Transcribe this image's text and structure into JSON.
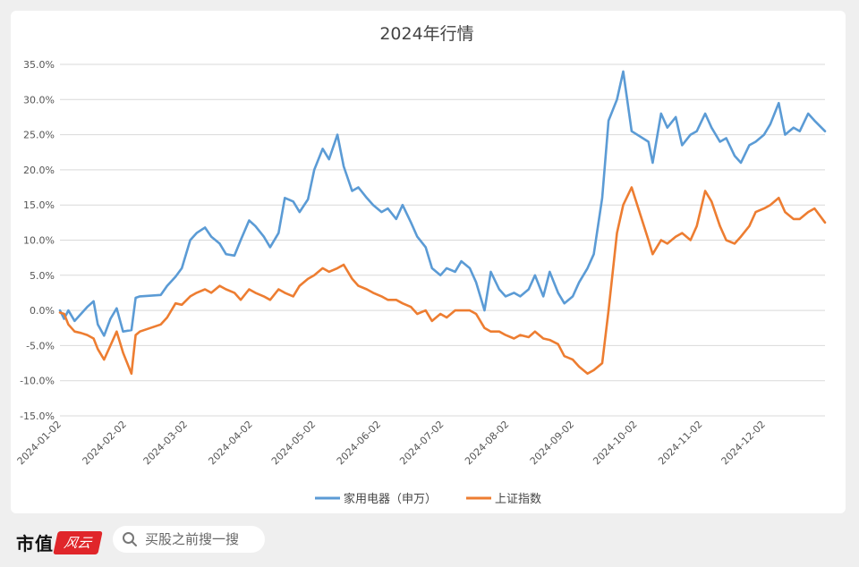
{
  "chart_data": {
    "type": "line",
    "title": "2024年行情",
    "xlabel": "",
    "ylabel": "",
    "ylim": [
      -0.15,
      0.35
    ],
    "yticks": [
      0.35,
      0.3,
      0.25,
      0.2,
      0.15,
      0.1,
      0.05,
      0.0,
      -0.05,
      -0.1,
      -0.15
    ],
    "ytick_labels": [
      "35.0%",
      "30.0%",
      "25.0%",
      "20.0%",
      "15.0%",
      "10.0%",
      "5.0%",
      "0.0%",
      "-5.0%",
      "-10.0%",
      "-15.0%"
    ],
    "xlim": [
      "2024-01-02",
      "2024-12-31"
    ],
    "xticks": [
      "2024-01-02",
      "2024-02-02",
      "2024-03-02",
      "2024-04-02",
      "2024-05-02",
      "2024-06-02",
      "2024-07-02",
      "2024-08-02",
      "2024-09-02",
      "2024-10-02",
      "2024-11-02",
      "2024-12-02"
    ],
    "grid": true,
    "legend_position": "bottom",
    "series": [
      {
        "name": "家用电器（申万）",
        "color": "#5b9bd5",
        "x": [
          "2024-01-02",
          "2024-01-04",
          "2024-01-06",
          "2024-01-09",
          "2024-01-12",
          "2024-01-15",
          "2024-01-18",
          "2024-01-20",
          "2024-01-23",
          "2024-01-26",
          "2024-01-29",
          "2024-02-01",
          "2024-02-05",
          "2024-02-07",
          "2024-02-09",
          "2024-02-19",
          "2024-02-22",
          "2024-02-26",
          "2024-02-29",
          "2024-03-04",
          "2024-03-07",
          "2024-03-11",
          "2024-03-14",
          "2024-03-18",
          "2024-03-21",
          "2024-03-25",
          "2024-03-28",
          "2024-04-01",
          "2024-04-04",
          "2024-04-08",
          "2024-04-11",
          "2024-04-15",
          "2024-04-18",
          "2024-04-22",
          "2024-04-25",
          "2024-04-29",
          "2024-05-02",
          "2024-05-06",
          "2024-05-09",
          "2024-05-13",
          "2024-05-16",
          "2024-05-20",
          "2024-05-23",
          "2024-05-27",
          "2024-05-30",
          "2024-06-03",
          "2024-06-06",
          "2024-06-10",
          "2024-06-13",
          "2024-06-17",
          "2024-06-20",
          "2024-06-24",
          "2024-06-27",
          "2024-07-01",
          "2024-07-04",
          "2024-07-08",
          "2024-07-11",
          "2024-07-15",
          "2024-07-18",
          "2024-07-22",
          "2024-07-25",
          "2024-07-29",
          "2024-08-01",
          "2024-08-05",
          "2024-08-08",
          "2024-08-12",
          "2024-08-15",
          "2024-08-19",
          "2024-08-22",
          "2024-08-26",
          "2024-08-29",
          "2024-09-02",
          "2024-09-05",
          "2024-09-09",
          "2024-09-12",
          "2024-09-16",
          "2024-09-19",
          "2024-09-23",
          "2024-09-26",
          "2024-09-30",
          "2024-10-08",
          "2024-10-10",
          "2024-10-14",
          "2024-10-17",
          "2024-10-21",
          "2024-10-24",
          "2024-10-28",
          "2024-10-31",
          "2024-11-04",
          "2024-11-07",
          "2024-11-11",
          "2024-11-14",
          "2024-11-18",
          "2024-11-21",
          "2024-11-25",
          "2024-11-28",
          "2024-12-02",
          "2024-12-05",
          "2024-12-09",
          "2024-12-12",
          "2024-12-16",
          "2024-12-19",
          "2024-12-23",
          "2024-12-26",
          "2024-12-31"
        ],
        "values": [
          0.0,
          -0.012,
          0.0,
          -0.015,
          -0.005,
          0.005,
          0.013,
          -0.02,
          -0.036,
          -0.012,
          0.003,
          -0.03,
          -0.028,
          0.018,
          0.02,
          0.022,
          0.035,
          0.048,
          0.06,
          0.1,
          0.11,
          0.118,
          0.105,
          0.095,
          0.08,
          0.078,
          0.1,
          0.128,
          0.12,
          0.105,
          0.09,
          0.11,
          0.16,
          0.155,
          0.14,
          0.158,
          0.2,
          0.23,
          0.215,
          0.25,
          0.205,
          0.17,
          0.175,
          0.16,
          0.15,
          0.14,
          0.145,
          0.13,
          0.15,
          0.125,
          0.105,
          0.09,
          0.06,
          0.05,
          0.06,
          0.055,
          0.07,
          0.06,
          0.04,
          0.0,
          0.055,
          0.03,
          0.02,
          0.025,
          0.02,
          0.03,
          0.05,
          0.02,
          0.055,
          0.025,
          0.01,
          0.02,
          0.04,
          0.06,
          0.08,
          0.16,
          0.27,
          0.3,
          0.34,
          0.255,
          0.24,
          0.21,
          0.28,
          0.26,
          0.275,
          0.235,
          0.25,
          0.255,
          0.28,
          0.26,
          0.24,
          0.245,
          0.22,
          0.21,
          0.235,
          0.24,
          0.25,
          0.265,
          0.295,
          0.25,
          0.26,
          0.255,
          0.28,
          0.27,
          0.255
        ]
      },
      {
        "name": "上证指数",
        "color": "#ed7d31",
        "x": [
          "2024-01-02",
          "2024-01-04",
          "2024-01-06",
          "2024-01-09",
          "2024-01-12",
          "2024-01-15",
          "2024-01-18",
          "2024-01-20",
          "2024-01-23",
          "2024-01-26",
          "2024-01-29",
          "2024-02-01",
          "2024-02-05",
          "2024-02-07",
          "2024-02-09",
          "2024-02-19",
          "2024-02-22",
          "2024-02-26",
          "2024-02-29",
          "2024-03-04",
          "2024-03-07",
          "2024-03-11",
          "2024-03-14",
          "2024-03-18",
          "2024-03-21",
          "2024-03-25",
          "2024-03-28",
          "2024-04-01",
          "2024-04-04",
          "2024-04-08",
          "2024-04-11",
          "2024-04-15",
          "2024-04-18",
          "2024-04-22",
          "2024-04-25",
          "2024-04-29",
          "2024-05-02",
          "2024-05-06",
          "2024-05-09",
          "2024-05-13",
          "2024-05-16",
          "2024-05-20",
          "2024-05-23",
          "2024-05-27",
          "2024-05-30",
          "2024-06-03",
          "2024-06-06",
          "2024-06-10",
          "2024-06-13",
          "2024-06-17",
          "2024-06-20",
          "2024-06-24",
          "2024-06-27",
          "2024-07-01",
          "2024-07-04",
          "2024-07-08",
          "2024-07-11",
          "2024-07-15",
          "2024-07-18",
          "2024-07-22",
          "2024-07-25",
          "2024-07-29",
          "2024-08-01",
          "2024-08-05",
          "2024-08-08",
          "2024-08-12",
          "2024-08-15",
          "2024-08-19",
          "2024-08-22",
          "2024-08-26",
          "2024-08-29",
          "2024-09-02",
          "2024-09-05",
          "2024-09-09",
          "2024-09-12",
          "2024-09-16",
          "2024-09-19",
          "2024-09-23",
          "2024-09-26",
          "2024-09-30",
          "2024-10-08",
          "2024-10-10",
          "2024-10-14",
          "2024-10-17",
          "2024-10-21",
          "2024-10-24",
          "2024-10-28",
          "2024-10-31",
          "2024-11-04",
          "2024-11-07",
          "2024-11-11",
          "2024-11-14",
          "2024-11-18",
          "2024-11-21",
          "2024-11-25",
          "2024-11-28",
          "2024-12-02",
          "2024-12-05",
          "2024-12-09",
          "2024-12-12",
          "2024-12-16",
          "2024-12-19",
          "2024-12-23",
          "2024-12-26",
          "2024-12-31"
        ],
        "values": [
          -0.003,
          -0.005,
          -0.02,
          -0.03,
          -0.032,
          -0.035,
          -0.04,
          -0.055,
          -0.07,
          -0.05,
          -0.03,
          -0.06,
          -0.09,
          -0.035,
          -0.03,
          -0.02,
          -0.01,
          0.01,
          0.008,
          0.02,
          0.025,
          0.03,
          0.025,
          0.035,
          0.03,
          0.025,
          0.015,
          0.03,
          0.025,
          0.02,
          0.015,
          0.03,
          0.025,
          0.02,
          0.035,
          0.045,
          0.05,
          0.06,
          0.055,
          0.06,
          0.065,
          0.045,
          0.035,
          0.03,
          0.025,
          0.02,
          0.015,
          0.015,
          0.01,
          0.005,
          -0.005,
          0.0,
          -0.015,
          -0.005,
          -0.01,
          0.0,
          0.0,
          0.0,
          -0.005,
          -0.025,
          -0.03,
          -0.03,
          -0.035,
          -0.04,
          -0.035,
          -0.038,
          -0.03,
          -0.04,
          -0.042,
          -0.048,
          -0.065,
          -0.07,
          -0.08,
          -0.09,
          -0.085,
          -0.075,
          0.0,
          0.11,
          0.15,
          0.175,
          0.1,
          0.08,
          0.1,
          0.095,
          0.105,
          0.11,
          0.1,
          0.12,
          0.17,
          0.155,
          0.12,
          0.1,
          0.095,
          0.105,
          0.12,
          0.14,
          0.145,
          0.15,
          0.16,
          0.14,
          0.13,
          0.13,
          0.14,
          0.145,
          0.125
        ]
      }
    ]
  },
  "footer": {
    "brand_text": "市值",
    "brand_logo_text": "风云",
    "search_placeholder": "买股之前搜一搜"
  }
}
